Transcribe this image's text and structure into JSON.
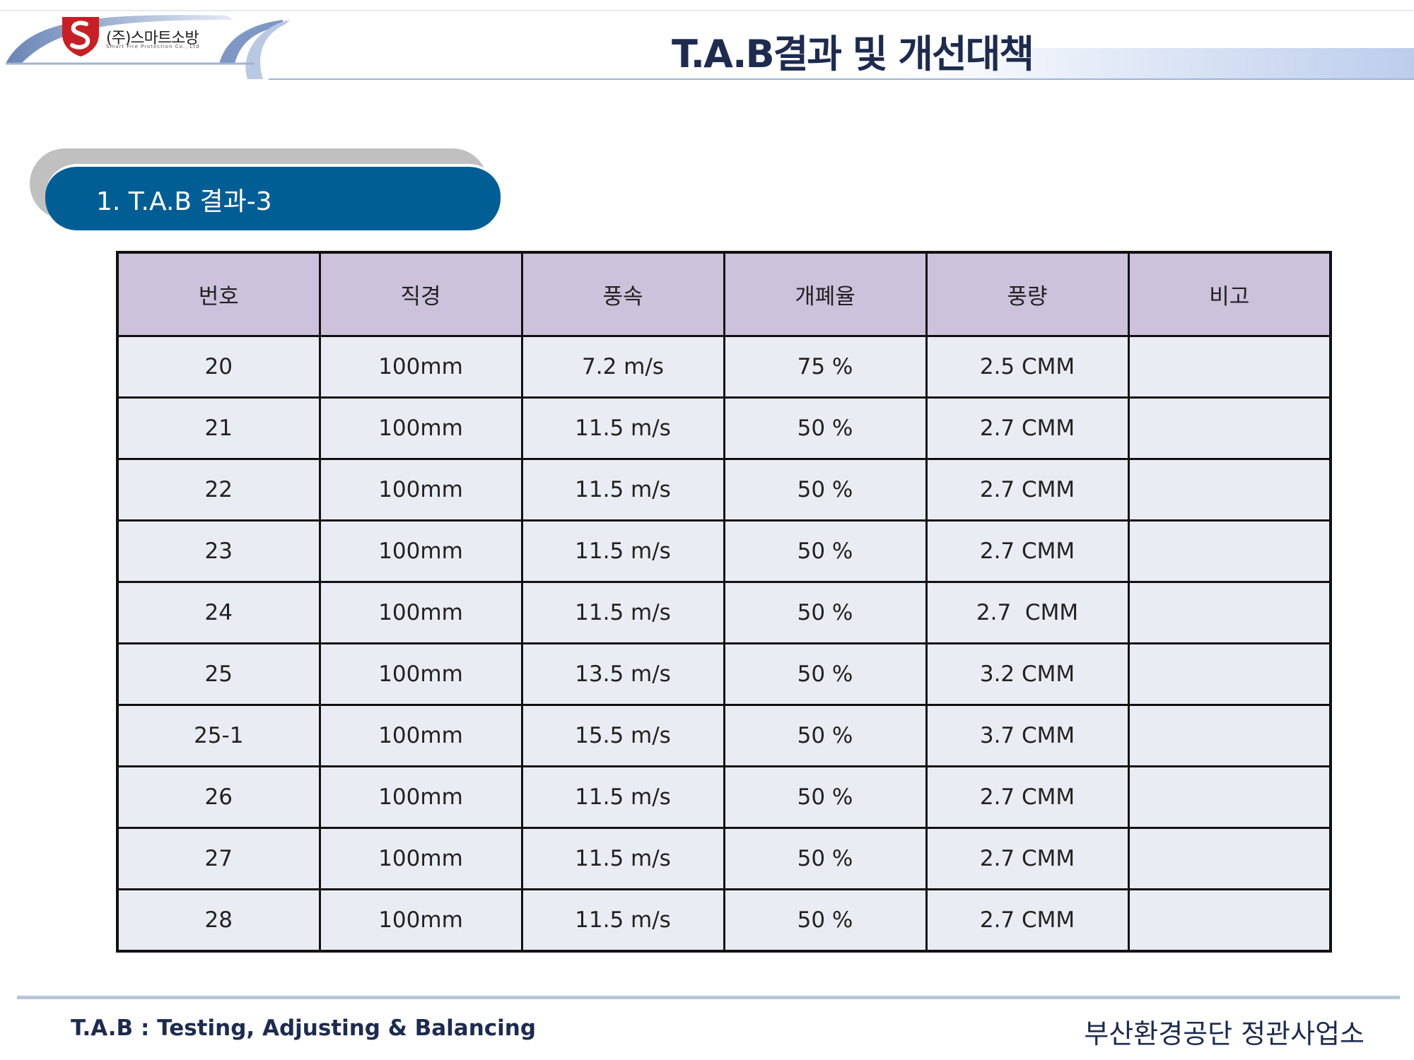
{
  "header": {
    "company_name": "(주)스마트소방",
    "company_subtitle": "Smart Fire Protection Co., Ltd",
    "title": "T.A.B결과 및 개선대책",
    "colors": {
      "title": "#1e2b4e",
      "band": "#c8d6ee",
      "logo": "#c62026"
    }
  },
  "section": {
    "title": "1. T.A.B 결과-3",
    "color": "#005e94"
  },
  "table": {
    "columns": [
      "번호",
      "직경",
      "풍속",
      "개폐율",
      "풍량",
      "비고"
    ],
    "rows": [
      [
        "20",
        "100mm",
        "7.2 m/s",
        "75 %",
        "2.5 CMM",
        ""
      ],
      [
        "21",
        "100mm",
        "11.5 m/s",
        "50 %",
        "2.7 CMM",
        ""
      ],
      [
        "22",
        "100mm",
        "11.5 m/s",
        "50 %",
        "2.7 CMM",
        ""
      ],
      [
        "23",
        "100mm",
        "11.5 m/s",
        "50 %",
        "2.7 CMM",
        ""
      ],
      [
        "24",
        "100mm",
        "11.5 m/s",
        "50 %",
        "2.7  CMM",
        ""
      ],
      [
        "25",
        "100mm",
        "13.5 m/s",
        "50 %",
        "3.2 CMM",
        ""
      ],
      [
        "25-1",
        "100mm",
        "15.5 m/s",
        "50 %",
        "3.7 CMM",
        ""
      ],
      [
        "26",
        "100mm",
        "11.5 m/s",
        "50 %",
        "2.7 CMM",
        ""
      ],
      [
        "27",
        "100mm",
        "11.5 m/s",
        "50 %",
        "2.7 CMM",
        ""
      ],
      [
        "28",
        "100mm",
        "11.5 m/s",
        "50 %",
        "2.7 CMM",
        ""
      ]
    ],
    "colors": {
      "header_bg": "#ccc2dc",
      "cell_bg": "#e9edf3"
    }
  },
  "footer": {
    "left": "T.A.B : Testing, Adjusting & Balancing",
    "right": "부산환경공단 정관사업소"
  }
}
